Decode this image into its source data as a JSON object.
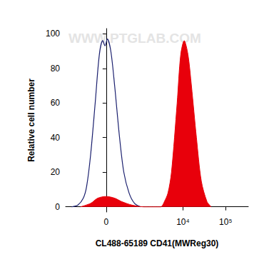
{
  "chart_data": {
    "type": "line",
    "x_label": "CL488-65189 CD41(MWReg30)",
    "y_label": "Relative cell number",
    "annotations": [
      "WWW.PTGLAB.COM"
    ],
    "xlim": [
      -1400,
      340000
    ],
    "xticks": [
      0,
      {
        "value": 10000,
        "label": "10⁴"
      },
      {
        "value": 100000,
        "label": "10⁵"
      }
    ],
    "ylim": [
      -3,
      103
    ],
    "yticks": [
      0,
      20,
      40,
      60,
      80,
      100
    ],
    "grid": false,
    "series": [
      {
        "type": "line",
        "color": "#1a1f6e",
        "x": [
          -1000,
          -700,
          -500,
          -400,
          -300,
          -200,
          -120,
          -60,
          -20,
          20,
          80,
          150,
          250,
          350,
          500,
          700,
          1000
        ],
        "values": [
          0,
          1,
          5,
          12,
          30,
          60,
          88,
          96,
          93,
          97,
          90,
          70,
          40,
          20,
          8,
          2,
          0
        ]
      },
      {
        "type": "area",
        "color": "#e8000b",
        "x": [
          -600,
          -300,
          -150,
          0,
          150,
          300,
          600,
          1200,
          3000,
          3660,
          4450,
          5380,
          7310,
          8870,
          10700,
          13100,
          15800,
          20700,
          26900,
          36600,
          46100
        ],
        "values": [
          0,
          2,
          5,
          6,
          5,
          3,
          1,
          0,
          0,
          3,
          8,
          20,
          60,
          88,
          96,
          88,
          70,
          40,
          15,
          3,
          0
        ]
      }
    ]
  }
}
